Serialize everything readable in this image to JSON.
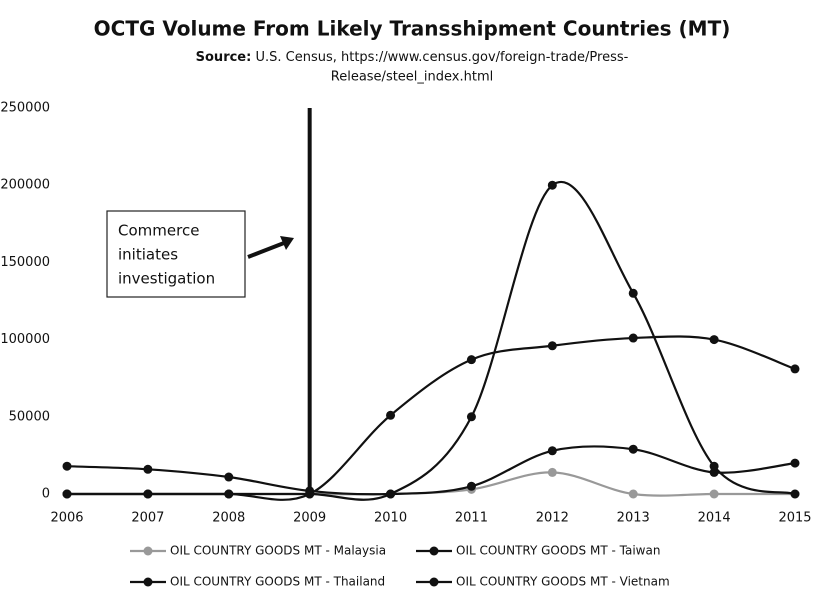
{
  "chart_data": {
    "type": "line",
    "title": "OCTG Volume From Likely Transshipment Countries (MT)",
    "subtitle_label": "Source:",
    "subtitle_line1": "U.S. Census, https://www.census.gov/foreign-trade/Press-",
    "subtitle_line2": "Release/steel_index.html",
    "annotation": {
      "lines": [
        "Commerce",
        "initiates",
        "investigation"
      ],
      "x": 2009
    },
    "x": [
      2006,
      2007,
      2008,
      2009,
      2010,
      2011,
      2012,
      2013,
      2014,
      2015
    ],
    "xlim": [
      2006,
      2015
    ],
    "xticks": [
      2006,
      2007,
      2008,
      2009,
      2010,
      2011,
      2012,
      2013,
      2014,
      2015
    ],
    "ylim": [
      0,
      250000
    ],
    "yticks": [
      0,
      50000,
      100000,
      150000,
      200000,
      250000
    ],
    "grid": false,
    "series": [
      {
        "name": "OIL COUNTRY GOODS MT - Malaysia",
        "color": "#999999",
        "values": [
          0,
          0,
          0,
          0,
          0,
          3000,
          14000,
          0,
          0,
          0
        ]
      },
      {
        "name": "OIL COUNTRY GOODS MT - Taiwan",
        "color": "#111111",
        "values": [
          18000,
          16000,
          11000,
          2000,
          0,
          5000,
          28000,
          29000,
          14000,
          20000
        ]
      },
      {
        "name": "OIL COUNTRY GOODS MT - Thailand",
        "color": "#111111",
        "values": [
          0,
          0,
          0,
          0,
          0,
          50000,
          200000,
          130000,
          18000,
          0
        ]
      },
      {
        "name": "OIL COUNTRY GOODS MT - Vietnam",
        "color": "#111111",
        "values": [
          0,
          0,
          0,
          0,
          51000,
          87000,
          96000,
          101000,
          100000,
          81000
        ]
      }
    ]
  }
}
